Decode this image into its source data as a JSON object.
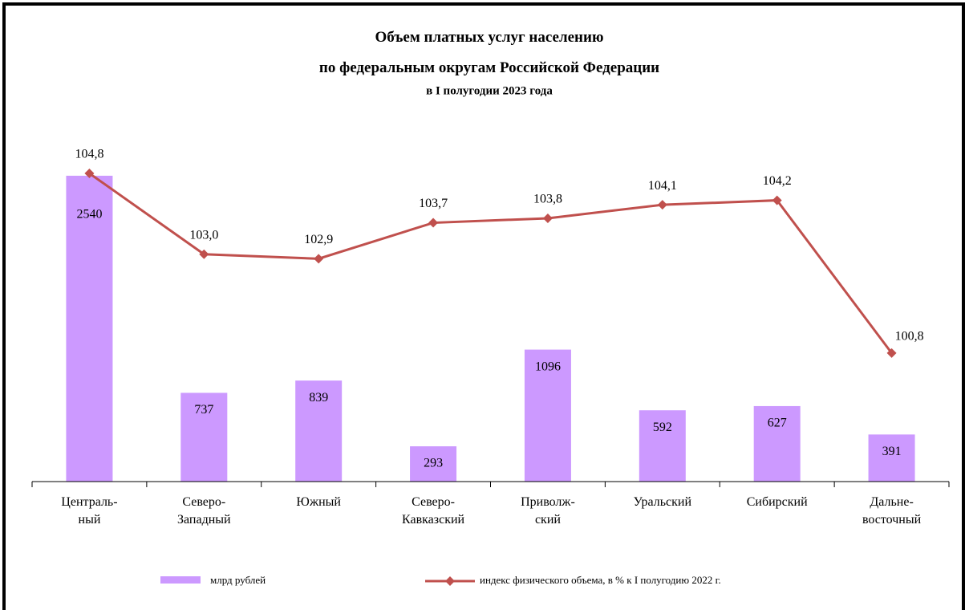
{
  "chart_data": {
    "type": "bar-line",
    "title": "Объем платных  услуг населению\nпо федеральным округам Российской Федерации",
    "subtitle": "в I полугодии 2023 года",
    "categories": [
      "Централь-\nный",
      "Северо-\nЗападный",
      "Южный",
      "Северо-\nКавказский",
      "Приволж-\nский",
      "Уральский",
      "Сибирский",
      "Дальне-\nвосточный"
    ],
    "ylim": [
      0,
      2933
    ],
    "y2lim": [
      97.94,
      105.8
    ],
    "series": [
      {
        "name": "млрд рублей",
        "type": "bar",
        "color": "#cc99ff",
        "values": [
          2540,
          737,
          839,
          293,
          1096,
          592,
          627,
          391
        ]
      },
      {
        "name": "индекс физического объема, в % к I полугодию 2022 г.",
        "type": "line",
        "axis": "y2",
        "color": "#c0504d",
        "values": [
          104.8,
          103.0,
          102.9,
          103.7,
          103.8,
          104.1,
          104.2,
          100.8
        ],
        "value_labels": [
          "104,8",
          "103,0",
          "102,9",
          "103,7",
          "103,8",
          "104,1",
          "104,2",
          "100,8"
        ]
      }
    ]
  }
}
